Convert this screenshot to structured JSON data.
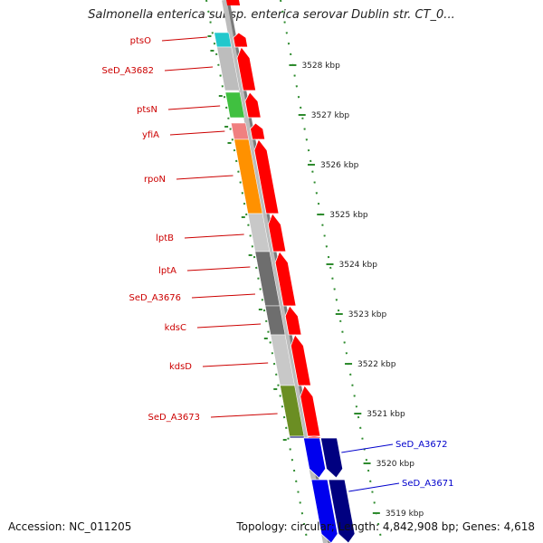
{
  "title": "Salmonella enterica subsp. enterica serovar Dublin str. CT_0...",
  "footer": {
    "accession": "Accession: NC_011205",
    "summary": "Topology: circular; Length: 4,842,908 bp; Genes: 4,618"
  },
  "colors": {
    "forward_strand": "#ff0000",
    "reverse_strand": "#0000ee",
    "reverse_strand_dark": "#000080",
    "forward_label": "#cc0000",
    "reverse_label": "#0000cc",
    "scale_ticks": "#2e8b2e"
  },
  "scale_labels": [
    "3528 kbp",
    "3527 kbp",
    "3526 kbp",
    "3525 kbp",
    "3524 kbp",
    "3523 kbp",
    "3522 kbp",
    "3521 kbp",
    "3520 kbp",
    "3519 kbp"
  ],
  "forward_genes": [
    {
      "name": "ptsO",
      "cog_color": "#22c8cc"
    },
    {
      "name": "SeD_A3682",
      "cog_color": "#bdbdbd"
    },
    {
      "name": "ptsN",
      "cog_color": "#40c040"
    },
    {
      "name": "yfiA",
      "cog_color": "#f08080"
    },
    {
      "name": "rpoN",
      "cog_color": "#ff9100"
    },
    {
      "name": "lptB",
      "cog_color": "#c8c8c8"
    },
    {
      "name": "lptA",
      "cog_color": "#6e6e6e"
    },
    {
      "name": "SeD_A3676",
      "cog_color": "#6e6e6e"
    },
    {
      "name": "kdsC",
      "cog_color": "#c8c8c8"
    },
    {
      "name": "kdsD",
      "cog_color": "#6b8e23"
    },
    {
      "name": "SeD_A3673",
      "cog_color": "#4b4b9a"
    }
  ],
  "reverse_genes": [
    {
      "name": "SeD_A3672"
    },
    {
      "name": "SeD_A3671"
    }
  ]
}
